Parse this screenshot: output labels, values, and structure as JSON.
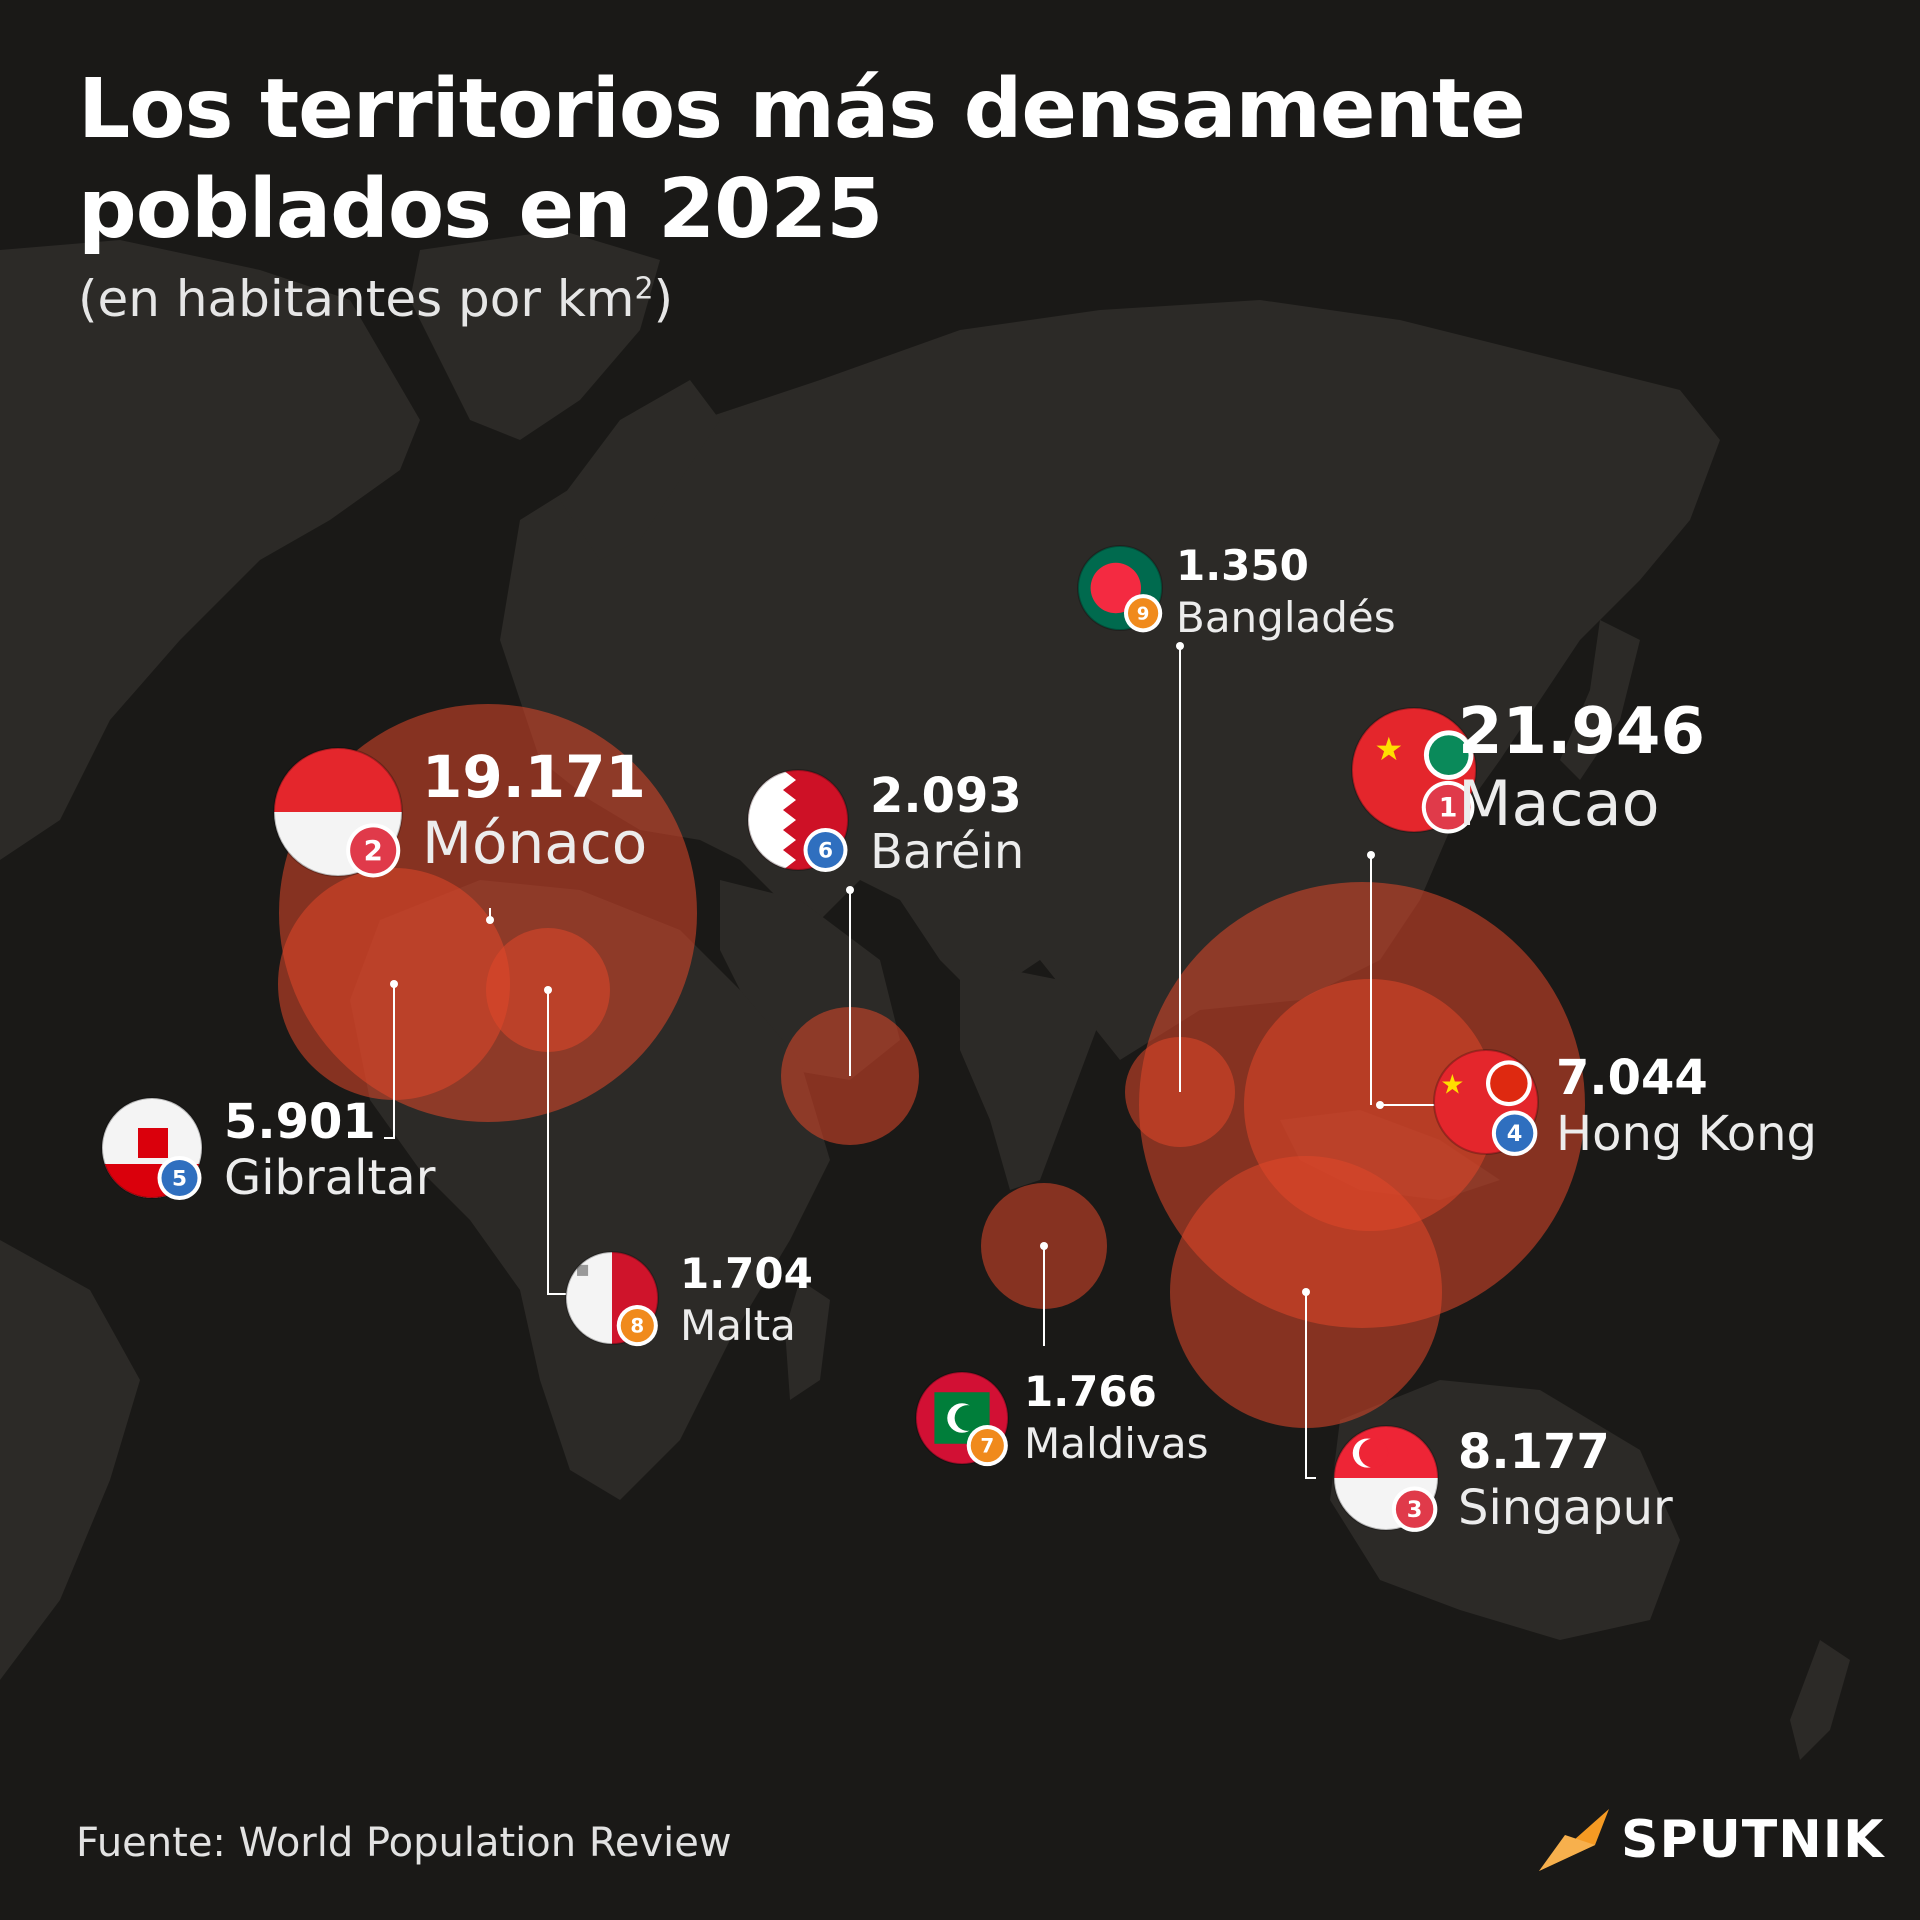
{
  "header": {
    "title_line1": "Los territorios más densamente",
    "title_line2": "poblados en 2025",
    "subtitle": "(en habitantes por km",
    "subtitle_sup": "2",
    "subtitle_end": ")"
  },
  "territories": [
    {
      "rank": "1",
      "value": "21.946",
      "name": "Macao",
      "flag": "macao-flag"
    },
    {
      "rank": "2",
      "value": "19.171",
      "name": "Mónaco",
      "flag": "monaco-flag"
    },
    {
      "rank": "3",
      "value": "8.177",
      "name": "Singapur",
      "flag": "singapore-flag"
    },
    {
      "rank": "4",
      "value": "7.044",
      "name": "Hong Kong",
      "flag": "hong-kong-flag"
    },
    {
      "rank": "5",
      "value": "5.901",
      "name": "Gibraltar",
      "flag": "gibraltar-flag"
    },
    {
      "rank": "6",
      "value": "2.093",
      "name": "Baréin",
      "flag": "bahrain-flag"
    },
    {
      "rank": "7",
      "value": "1.766",
      "name": "Maldivas",
      "flag": "maldives-flag"
    },
    {
      "rank": "8",
      "value": "1.704",
      "name": "Malta",
      "flag": "malta-flag"
    },
    {
      "rank": "9",
      "value": "1.350",
      "name": "Bangladés",
      "flag": "bangladesh-flag"
    }
  ],
  "colors": {
    "background": "#1a1917",
    "land": "#2d2b28",
    "bubble": "#e0472a",
    "badge_red": "#e03a4a",
    "badge_blue": "#2f6fbf",
    "badge_orange": "#f08a1c",
    "brand_orange": "#f59a23"
  },
  "footer": {
    "source": "Fuente: World Population Review",
    "brand": "SPUTNIK",
    "brand_icon": "sputnik-logo-icon"
  }
}
